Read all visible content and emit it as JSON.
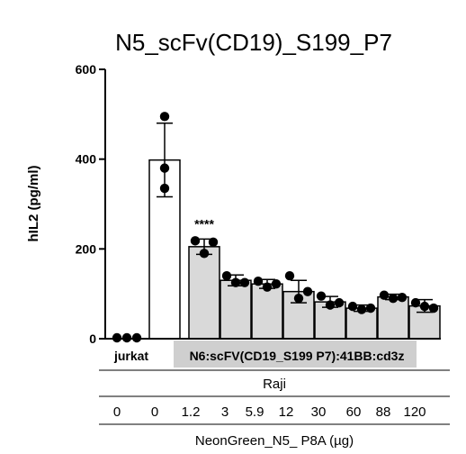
{
  "chart_data": {
    "type": "bar",
    "title": "N5_scFv(CD19)_S199_P7",
    "ylabel": "hIL2 (pg/ml)",
    "ylim": [
      0,
      600
    ],
    "yticks": [
      "0",
      "200",
      "400",
      "600"
    ],
    "group_labels": {
      "left": "jurkat",
      "right": "N6:scFV(CD19_S199 P7):41BB:cd3z"
    },
    "raji_label": "Raji",
    "xlabel": "NeonGreen_N5_ P8A (µg)",
    "categories": [
      "0",
      "0",
      "1.2",
      "3",
      "5.9",
      "12",
      "30",
      "60",
      "88",
      "120"
    ],
    "values": [
      2,
      398,
      205,
      130,
      122,
      105,
      82,
      68,
      93,
      73
    ],
    "errors": [
      2,
      82,
      17,
      12,
      10,
      25,
      12,
      7,
      6,
      14
    ],
    "points": [
      [
        2,
        2,
        2
      ],
      [
        495,
        380,
        335
      ],
      [
        218,
        190,
        215
      ],
      [
        140,
        125,
        125
      ],
      [
        128,
        115,
        122
      ],
      [
        140,
        90,
        105
      ],
      [
        95,
        75,
        80
      ],
      [
        72,
        65,
        68
      ],
      [
        97,
        90,
        92
      ],
      [
        80,
        72,
        68
      ]
    ],
    "significance": [
      {
        "index": 2,
        "label": "****"
      }
    ],
    "colors": {
      "bar_control": "#ffffff",
      "bar_treated": "#d9d9d9",
      "group_band": "#cfcfcf",
      "stroke": "#000000"
    }
  }
}
